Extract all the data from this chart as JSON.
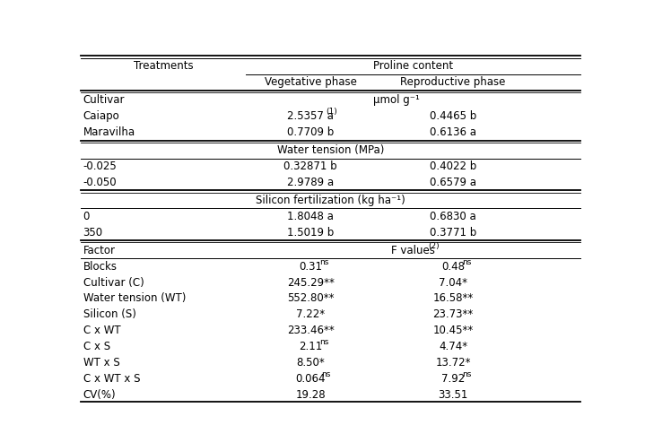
{
  "title_main": "Proline content",
  "col_headers": [
    "Vegetative phase",
    "Reproductive phase"
  ],
  "treatments_label": "Treatments",
  "bg_color": "#ffffff",
  "font_size": 8.5,
  "small_font_size": 6.5,
  "sections": [
    {
      "header": "Cultivar",
      "unit_row": "μmol g⁻¹",
      "rows": [
        {
          "label": "Caiapo",
          "veg": "2.5357 a",
          "veg_sup": "(1)",
          "rep": "0.4465 b",
          "rep_sup": ""
        },
        {
          "label": "Maravilha",
          "veg": "0.7709 b",
          "veg_sup": "",
          "rep": "0.6136 a",
          "rep_sup": ""
        }
      ]
    },
    {
      "header": "Water tension (MPa)",
      "unit_row": null,
      "rows": [
        {
          "label": "-0.025",
          "veg": "0.32871 b",
          "veg_sup": "",
          "rep": "0.4022 b",
          "rep_sup": ""
        },
        {
          "label": "-0.050",
          "veg": "2.9789 a",
          "veg_sup": "",
          "rep": "0.6579 a",
          "rep_sup": ""
        }
      ]
    },
    {
      "header": "Silicon fertilization (kg ha⁻¹)",
      "unit_row": null,
      "rows": [
        {
          "label": "0",
          "veg": "1.8048 a",
          "veg_sup": "",
          "rep": "0.6830 a",
          "rep_sup": ""
        },
        {
          "label": "350",
          "veg": "1.5019 b",
          "veg_sup": "",
          "rep": "0.3771 b",
          "rep_sup": ""
        }
      ]
    }
  ],
  "fvalues_header": "Factor",
  "fvalues_rows": [
    {
      "label": "Blocks",
      "veg": "0.31",
      "veg_sup": "ns",
      "rep": "0.48",
      "rep_sup": "ns"
    },
    {
      "label": "Cultivar (C)",
      "veg": "245.29**",
      "veg_sup": "",
      "rep": "7.04*",
      "rep_sup": ""
    },
    {
      "label": "Water tension (WT)",
      "veg": "552.80**",
      "veg_sup": "",
      "rep": "16.58**",
      "rep_sup": ""
    },
    {
      "label": "Silicon (S)",
      "veg": "7.22*",
      "veg_sup": "",
      "rep": "23.73**",
      "rep_sup": ""
    },
    {
      "label": "C x WT",
      "veg": "233.46**",
      "veg_sup": "",
      "rep": "10.45**",
      "rep_sup": ""
    },
    {
      "label": "C x S",
      "veg": "2.11",
      "veg_sup": "ns",
      "rep": "4.74*",
      "rep_sup": ""
    },
    {
      "label": "WT x S",
      "veg": "8.50*",
      "veg_sup": "",
      "rep": "13.72*",
      "rep_sup": ""
    },
    {
      "label": "C x WT x S",
      "veg": "0.064",
      "veg_sup": "ns",
      "rep": "7.92",
      "rep_sup": "ns"
    },
    {
      "label": "CV(%)",
      "veg": "19.28",
      "veg_sup": "",
      "rep": "33.51",
      "rep_sup": ""
    }
  ]
}
